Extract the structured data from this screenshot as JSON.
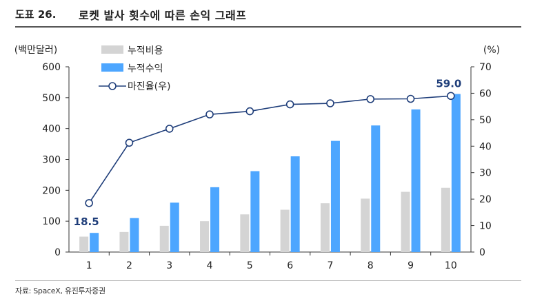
{
  "header": {
    "figure_label": "도표 26.",
    "title": "로켓 발사 횟수에 따른 손익 그래프"
  },
  "source": "자료: SpaceX, 유진투자증권",
  "colors": {
    "cost": "#d4d4d4",
    "revenue": "#4da6ff",
    "margin": "#1f3e7a",
    "axis": "#333333"
  },
  "chart_data": {
    "type": "bar",
    "categories": [
      "1",
      "2",
      "3",
      "4",
      "5",
      "6",
      "7",
      "8",
      "9",
      "10"
    ],
    "series": [
      {
        "name": "누적비용",
        "type": "bar",
        "axis": "left",
        "values": [
          50,
          65,
          85,
          100,
          122,
          137,
          158,
          173,
          195,
          208
        ]
      },
      {
        "name": "누적수익",
        "type": "bar",
        "axis": "left",
        "values": [
          62,
          110,
          160,
          210,
          262,
          310,
          360,
          410,
          462,
          512
        ]
      },
      {
        "name": "마진율(우)",
        "type": "line",
        "axis": "right",
        "values": [
          18.5,
          41.3,
          46.6,
          52.0,
          53.2,
          55.8,
          56.2,
          57.8,
          57.9,
          59.0
        ]
      }
    ],
    "y_left": {
      "label": "(백만달러)",
      "lim": [
        0,
        600
      ],
      "ticks": [
        0,
        100,
        200,
        300,
        400,
        500,
        600
      ]
    },
    "y_right": {
      "label": "(%)",
      "lim": [
        0,
        70
      ],
      "ticks": [
        0,
        10,
        20,
        30,
        40,
        50,
        60,
        70
      ]
    },
    "annotations": [
      {
        "series": 2,
        "index": 0,
        "text": "18.5"
      },
      {
        "series": 2,
        "index": 9,
        "text": "59.0"
      }
    ],
    "legend": "top-left",
    "grid": false
  }
}
